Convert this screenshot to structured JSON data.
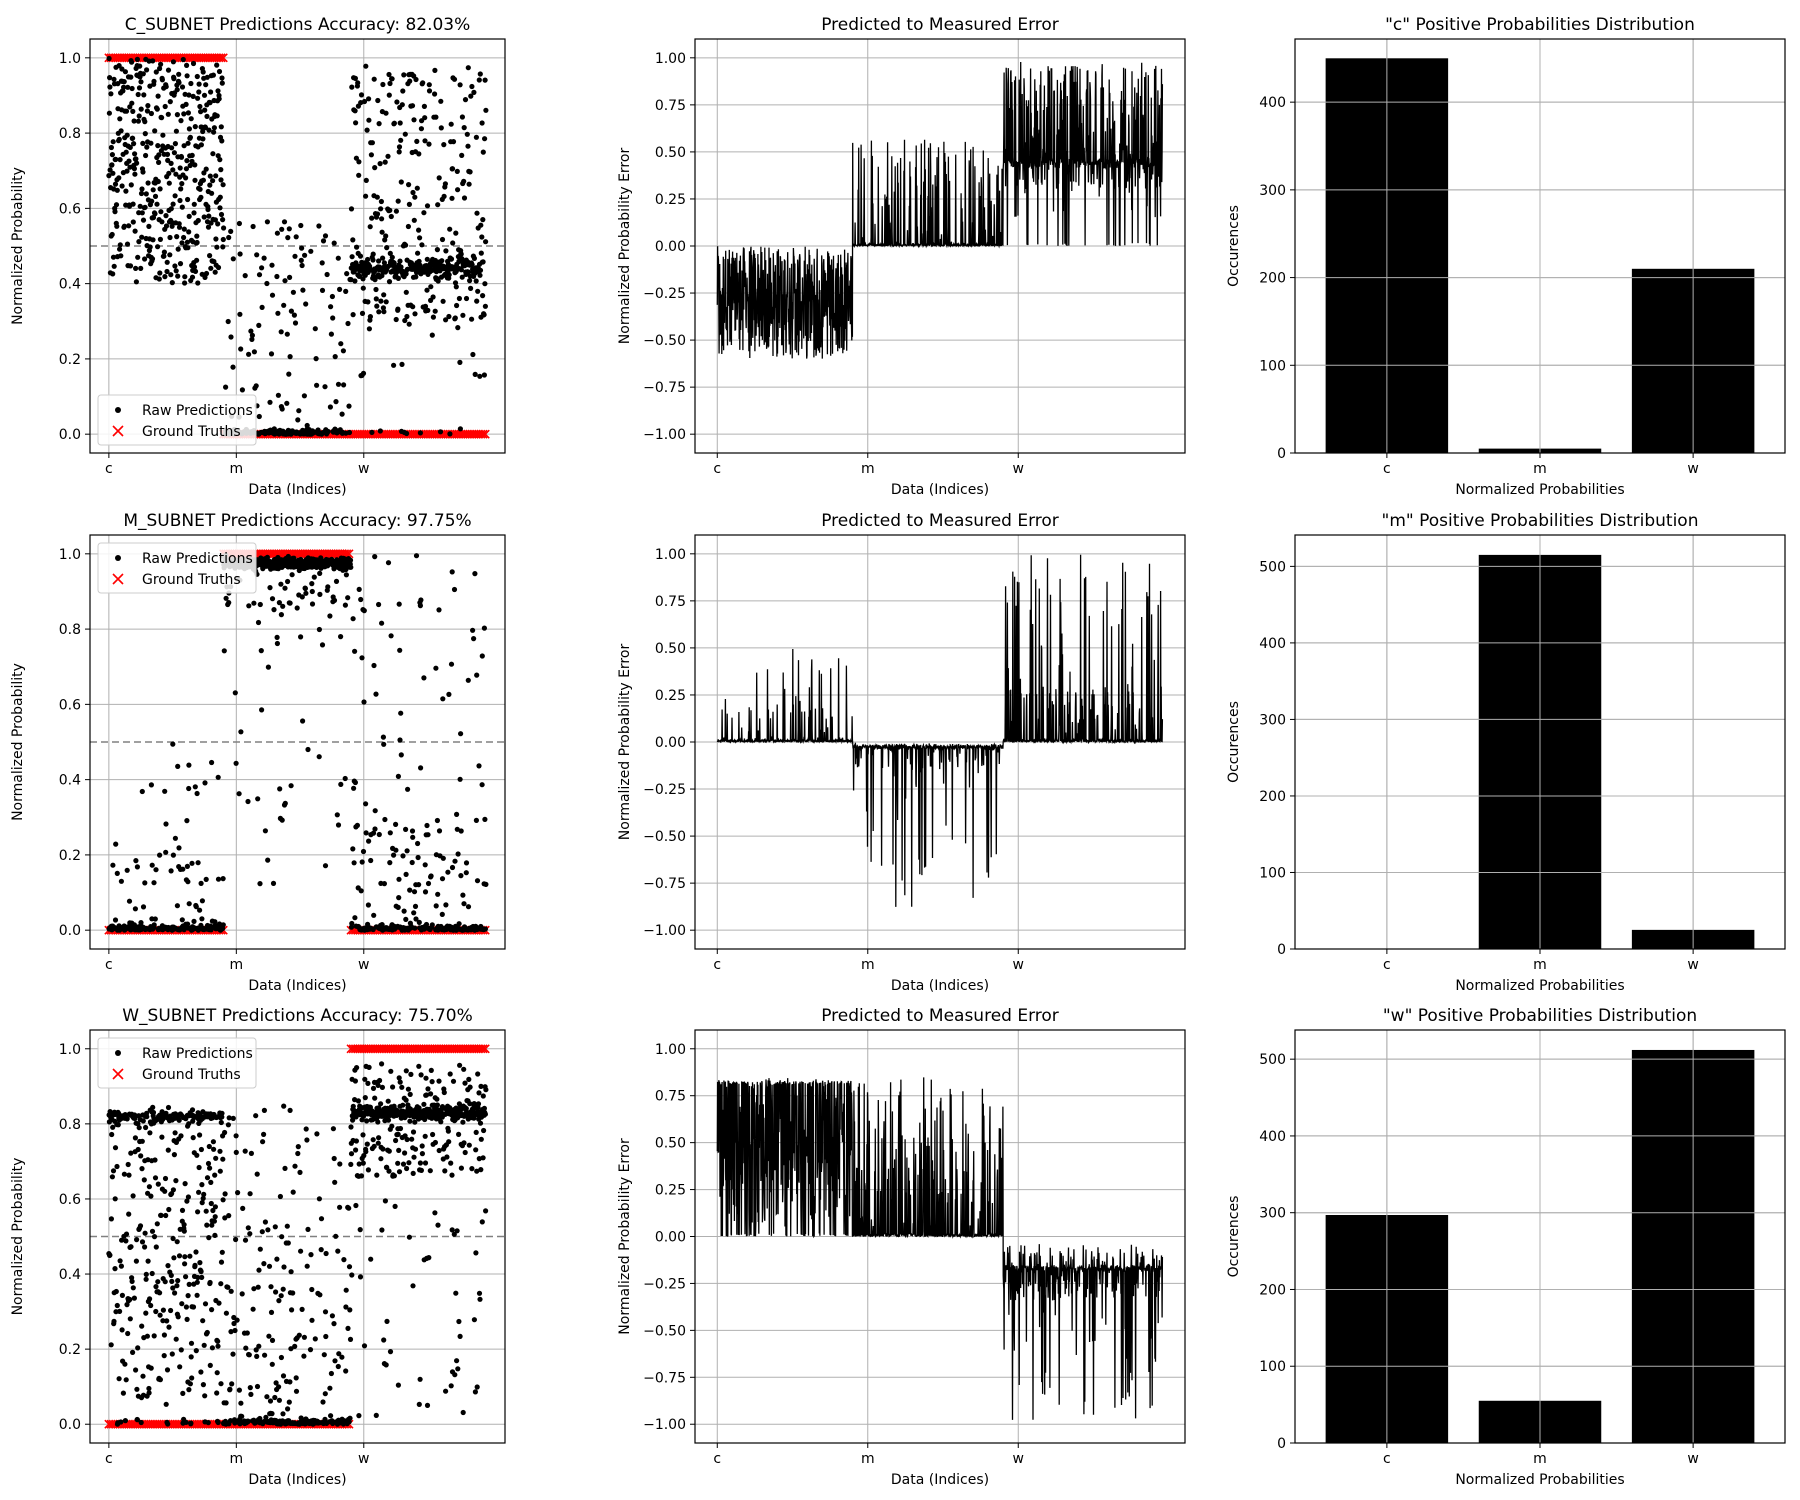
{
  "colors": {
    "marker": "#000000",
    "ground_truth": "#ff0000",
    "grid": "#b0b0b0",
    "threshold": "#808080",
    "bar": "#000000"
  },
  "legend": {
    "raw": "Raw Predictions",
    "gt": "Ground Truths"
  },
  "chart_data": [
    {
      "type": "scatter",
      "subnet": "c",
      "title": "C_SUBNET Predictions Accuracy: 82.03%",
      "xlabel": "Data (Indices)",
      "ylabel": "Normalized Probability",
      "xticks": [
        "c",
        "m",
        "w"
      ],
      "yticks": [
        "0.0",
        "0.2",
        "0.4",
        "0.6",
        "0.8",
        "1.0"
      ],
      "ylim": [
        -0.05,
        1.05
      ],
      "threshold": 0.5,
      "grid": true,
      "legend_position": "lower-left",
      "series": [
        {
          "name": "Raw Predictions",
          "segments": [
            {
              "class": "c",
              "profile": "pos_wide",
              "count": 450
            },
            {
              "class": "m",
              "profile": "neg_sparse",
              "count": 500
            },
            {
              "class": "w",
              "profile": "c_on_w",
              "count": 530
            }
          ]
        },
        {
          "name": "Ground Truths",
          "values_by_class": {
            "c": 1,
            "m": 0,
            "w": 0
          }
        }
      ]
    },
    {
      "type": "line",
      "subnet": "c",
      "title": "Predicted to Measured Error",
      "xlabel": "Data (Indices)",
      "ylabel": "Normalized Probability Error",
      "xticks": [
        "c",
        "m",
        "w"
      ],
      "yticks": [
        "−1.00",
        "−0.75",
        "−0.50",
        "−0.25",
        "0.00",
        "0.25",
        "0.50",
        "0.75",
        "1.00"
      ],
      "ylim": [
        -1.1,
        1.1
      ],
      "grid": true
    },
    {
      "type": "bar",
      "subnet": "c",
      "title": "\"c\" Positive Probabilities Distribution",
      "xlabel": "Normalized Probabilities",
      "ylabel": "Occurences",
      "categories": [
        "c",
        "m",
        "w"
      ],
      "values": [
        450,
        5,
        210
      ],
      "yticks": [
        "0",
        "100",
        "200",
        "300",
        "400"
      ],
      "ylim": [
        0,
        472
      ],
      "grid": true
    },
    {
      "type": "scatter",
      "subnet": "m",
      "title": "M_SUBNET Predictions Accuracy: 97.75%",
      "xlabel": "Data (Indices)",
      "ylabel": "Normalized Probability",
      "xticks": [
        "c",
        "m",
        "w"
      ],
      "yticks": [
        "0.0",
        "0.2",
        "0.4",
        "0.6",
        "0.8",
        "1.0"
      ],
      "ylim": [
        -0.05,
        1.05
      ],
      "threshold": 0.5,
      "grid": true,
      "legend_position": "upper-left",
      "series": [
        {
          "name": "Raw Predictions",
          "segments": [
            {
              "class": "c",
              "profile": "neg_low",
              "count": 450
            },
            {
              "class": "m",
              "profile": "pos_high",
              "count": 500
            },
            {
              "class": "w",
              "profile": "neg_low_mixed",
              "count": 530
            }
          ]
        },
        {
          "name": "Ground Truths",
          "values_by_class": {
            "c": 0,
            "m": 1,
            "w": 0
          }
        }
      ]
    },
    {
      "type": "line",
      "subnet": "m",
      "title": "Predicted to Measured Error",
      "xlabel": "Data (Indices)",
      "ylabel": "Normalized Probability Error",
      "xticks": [
        "c",
        "m",
        "w"
      ],
      "yticks": [
        "−1.00",
        "−0.75",
        "−0.50",
        "−0.25",
        "0.00",
        "0.25",
        "0.50",
        "0.75",
        "1.00"
      ],
      "ylim": [
        -1.1,
        1.1
      ],
      "grid": true
    },
    {
      "type": "bar",
      "subnet": "m",
      "title": "\"m\" Positive Probabilities Distribution",
      "xlabel": "Normalized Probabilities",
      "ylabel": "Occurences",
      "categories": [
        "c",
        "m",
        "w"
      ],
      "values": [
        0,
        515,
        25
      ],
      "yticks": [
        "0",
        "100",
        "200",
        "300",
        "400",
        "500"
      ],
      "ylim": [
        0,
        541
      ],
      "grid": true
    },
    {
      "type": "scatter",
      "subnet": "w",
      "title": "W_SUBNET Predictions Accuracy: 75.70%",
      "xlabel": "Data (Indices)",
      "ylabel": "Normalized Probability",
      "xticks": [
        "c",
        "m",
        "w"
      ],
      "yticks": [
        "0.0",
        "0.2",
        "0.4",
        "0.6",
        "0.8",
        "1.0"
      ],
      "ylim": [
        -0.05,
        1.05
      ],
      "threshold": 0.5,
      "grid": true,
      "legend_position": "upper-left",
      "series": [
        {
          "name": "Raw Predictions",
          "segments": [
            {
              "class": "c",
              "profile": "w_on_c",
              "count": 450
            },
            {
              "class": "m",
              "profile": "neg_m_w",
              "count": 500
            },
            {
              "class": "w",
              "profile": "pos_w",
              "count": 530
            }
          ]
        },
        {
          "name": "Ground Truths",
          "values_by_class": {
            "c": 0,
            "m": 0,
            "w": 1
          }
        }
      ]
    },
    {
      "type": "line",
      "subnet": "w",
      "title": "Predicted to Measured Error",
      "xlabel": "Data (Indices)",
      "ylabel": "Normalized Probability Error",
      "xticks": [
        "c",
        "m",
        "w"
      ],
      "yticks": [
        "−1.00",
        "−0.75",
        "−0.50",
        "−0.25",
        "0.00",
        "0.25",
        "0.50",
        "0.75",
        "1.00"
      ],
      "ylim": [
        -1.1,
        1.1
      ],
      "grid": true
    },
    {
      "type": "bar",
      "subnet": "w",
      "title": "\"w\" Positive Probabilities Distribution",
      "xlabel": "Normalized Probabilities",
      "ylabel": "Occurences",
      "categories": [
        "c",
        "m",
        "w"
      ],
      "values": [
        297,
        55,
        512
      ],
      "yticks": [
        "0",
        "100",
        "200",
        "300",
        "400",
        "500"
      ],
      "ylim": [
        0,
        538
      ],
      "grid": true
    }
  ]
}
